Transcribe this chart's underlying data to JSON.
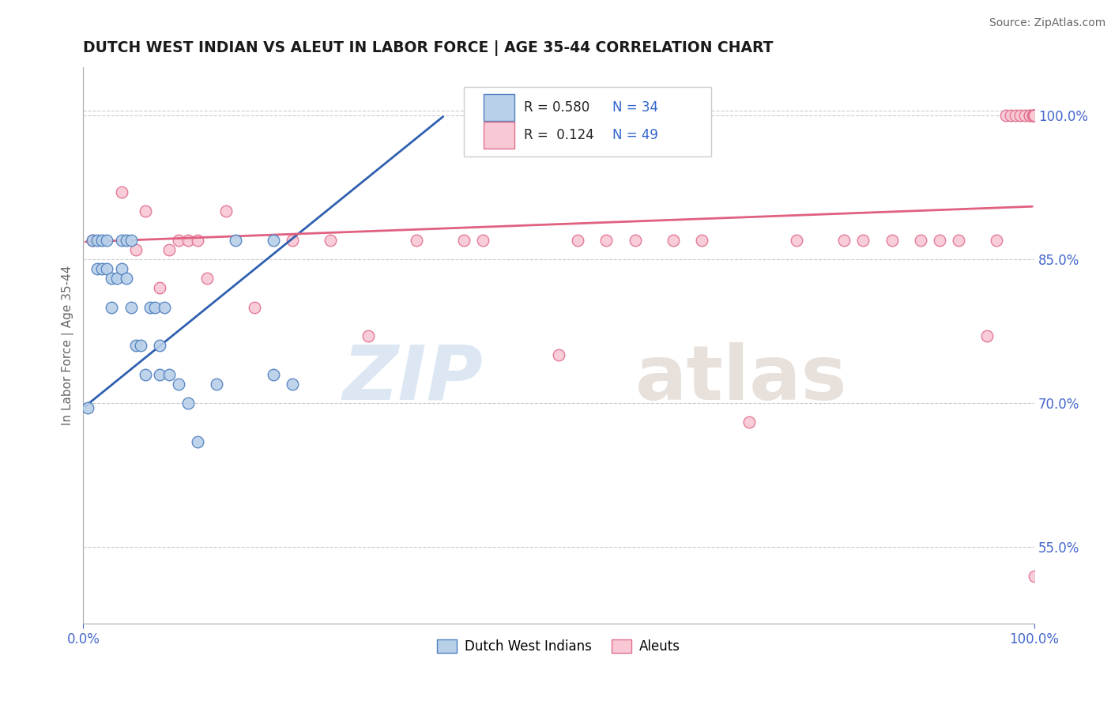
{
  "title": "DUTCH WEST INDIAN VS ALEUT IN LABOR FORCE | AGE 35-44 CORRELATION CHART",
  "source": "Source: ZipAtlas.com",
  "ylabel": "In Labor Force | Age 35-44",
  "xlim": [
    0.0,
    1.0
  ],
  "ylim": [
    0.47,
    1.05
  ],
  "x_ticks": [
    0.0,
    1.0
  ],
  "x_tick_labels": [
    "0.0%",
    "100.0%"
  ],
  "y_tick_labels": [
    "55.0%",
    "70.0%",
    "85.0%",
    "100.0%"
  ],
  "y_ticks": [
    0.55,
    0.7,
    0.85,
    1.0
  ],
  "legend_r_blue": "0.580",
  "legend_n_blue": "34",
  "legend_r_pink": "0.124",
  "legend_n_pink": "49",
  "legend_label_blue": "Dutch West Indians",
  "legend_label_pink": "Aleuts",
  "blue_fill": "#b8d0e8",
  "blue_edge": "#5080c0",
  "pink_fill": "#f8c8d4",
  "pink_edge": "#e07090",
  "blue_line_color": "#3060b0",
  "pink_line_color": "#e06080",
  "blue_scatter_x": [
    0.005,
    0.01,
    0.015,
    0.015,
    0.02,
    0.02,
    0.025,
    0.025,
    0.03,
    0.03,
    0.035,
    0.04,
    0.04,
    0.045,
    0.045,
    0.05,
    0.05,
    0.055,
    0.06,
    0.065,
    0.07,
    0.075,
    0.08,
    0.08,
    0.085,
    0.09,
    0.1,
    0.11,
    0.12,
    0.14,
    0.16,
    0.2,
    0.2,
    0.22
  ],
  "blue_scatter_y": [
    0.695,
    0.87,
    0.87,
    0.84,
    0.87,
    0.84,
    0.87,
    0.84,
    0.83,
    0.8,
    0.83,
    0.87,
    0.84,
    0.87,
    0.83,
    0.8,
    0.87,
    0.76,
    0.76,
    0.73,
    0.8,
    0.8,
    0.76,
    0.73,
    0.8,
    0.73,
    0.72,
    0.7,
    0.66,
    0.72,
    0.87,
    0.87,
    0.73,
    0.72
  ],
  "pink_scatter_x": [
    0.01,
    0.04,
    0.055,
    0.065,
    0.08,
    0.09,
    0.1,
    0.11,
    0.12,
    0.13,
    0.15,
    0.18,
    0.22,
    0.26,
    0.3,
    0.35,
    0.4,
    0.42,
    0.5,
    0.55,
    0.58,
    0.62,
    0.65,
    0.7,
    0.75,
    0.8,
    0.82,
    0.85,
    0.88,
    0.9,
    0.92,
    0.95,
    0.96,
    0.97,
    0.975,
    0.98,
    0.985,
    0.99,
    0.995,
    0.995,
    0.998,
    0.999,
    0.999,
    1.0,
    1.0,
    1.0,
    1.0,
    1.0,
    0.52
  ],
  "pink_scatter_y": [
    0.87,
    0.92,
    0.86,
    0.9,
    0.82,
    0.86,
    0.87,
    0.87,
    0.87,
    0.83,
    0.9,
    0.8,
    0.87,
    0.87,
    0.77,
    0.87,
    0.87,
    0.87,
    0.75,
    0.87,
    0.87,
    0.87,
    0.87,
    0.68,
    0.87,
    0.87,
    0.87,
    0.87,
    0.87,
    0.87,
    0.87,
    0.77,
    0.87,
    1.0,
    1.0,
    1.0,
    1.0,
    1.0,
    1.0,
    1.0,
    1.0,
    1.0,
    1.0,
    1.0,
    1.0,
    1.0,
    1.0,
    0.52,
    0.87
  ],
  "blue_trend_x0": 0.0,
  "blue_trend_y0": 0.695,
  "blue_trend_x1": 0.38,
  "blue_trend_y1": 1.0,
  "pink_trend_x0": 0.0,
  "pink_trend_y0": 0.868,
  "pink_trend_x1": 1.0,
  "pink_trend_y1": 0.905
}
